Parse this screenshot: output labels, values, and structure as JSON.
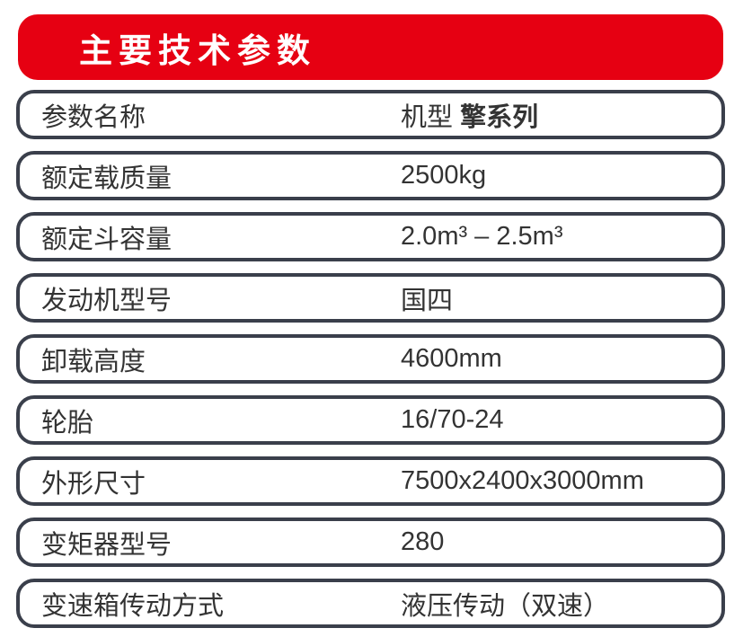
{
  "page": {
    "background_color": "#ffffff"
  },
  "header": {
    "title": "主要技术参数",
    "background_color": "#e60012",
    "text_color": "#ffffff"
  },
  "table": {
    "border_color": "#3a3f4b",
    "text_color": "#333333",
    "rows": [
      {
        "label": "参数名称",
        "value": "机型 ",
        "value_bold": "擎系列"
      },
      {
        "label": "额定载质量",
        "value": "2500kg"
      },
      {
        "label": "额定斗容量",
        "value": "2.0m³ – 2.5m³"
      },
      {
        "label": "发动机型号",
        "value": "国四"
      },
      {
        "label": "卸载高度",
        "value": "4600mm"
      },
      {
        "label": "轮胎",
        "value": "16/70-24"
      },
      {
        "label": "外形尺寸",
        "value": "7500x2400x3000mm"
      },
      {
        "label": "变矩器型号",
        "value": "280"
      },
      {
        "label": "变速箱传动方式",
        "value": "液压传动（双速）"
      }
    ]
  }
}
